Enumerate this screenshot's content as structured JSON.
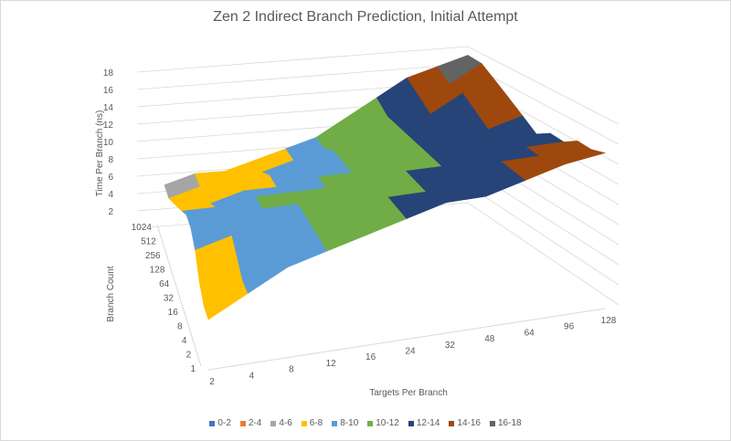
{
  "chart_data": {
    "type": "surface",
    "title": "Zen 2 Indirect Branch Prediction, Initial Attempt",
    "xlabel": "Targets Per Branch",
    "ylabel": "Branch Count",
    "zlabel": "Time Per Branch (ns)",
    "x_ticks": [
      "2",
      "4",
      "8",
      "12",
      "16",
      "24",
      "32",
      "48",
      "64",
      "96",
      "128"
    ],
    "y_ticks": [
      "1",
      "2",
      "4",
      "8",
      "16",
      "32",
      "64",
      "128",
      "256",
      "512",
      "1024"
    ],
    "z_ticks": [
      "2",
      "4",
      "6",
      "8",
      "10",
      "12",
      "14",
      "16",
      "18"
    ],
    "zlim": [
      0,
      18
    ],
    "grid": true,
    "legend_position": "bottom",
    "bands": [
      {
        "label": "0-2",
        "color": "#4472C4"
      },
      {
        "label": "2-4",
        "color": "#ED7D31"
      },
      {
        "label": "4-6",
        "color": "#A5A5A5"
      },
      {
        "label": "6-8",
        "color": "#FFC000"
      },
      {
        "label": "8-10",
        "color": "#5B9BD5"
      },
      {
        "label": "10-12",
        "color": "#70AD47"
      },
      {
        "label": "12-14",
        "color": "#264478"
      },
      {
        "label": "14-16",
        "color": "#9E480E"
      },
      {
        "label": "16-18",
        "color": "#636363"
      }
    ],
    "z_values": [
      [
        5,
        7,
        9,
        10,
        11,
        12,
        13,
        13,
        14,
        15,
        15.5
      ],
      [
        5,
        7,
        9,
        10,
        11,
        12,
        13,
        13,
        14,
        15,
        15
      ],
      [
        6,
        8,
        9,
        10,
        11,
        12,
        12,
        13,
        14,
        14,
        15
      ],
      [
        8,
        9,
        9,
        10,
        11,
        11,
        12,
        13,
        13,
        14,
        14
      ],
      [
        9,
        9,
        10,
        10,
        10,
        11,
        12,
        12,
        13,
        13,
        14
      ],
      [
        9,
        9,
        10,
        10,
        10,
        11,
        11,
        12,
        12,
        13,
        13
      ],
      [
        8,
        8,
        9,
        9,
        10,
        10,
        11,
        12,
        12,
        13,
        14
      ],
      [
        7,
        7,
        8,
        8,
        9,
        10,
        11,
        12,
        13,
        14,
        15
      ],
      [
        6,
        7,
        7,
        8,
        9,
        10,
        11,
        12,
        13,
        15,
        16
      ],
      [
        5,
        6,
        7,
        7,
        8,
        9,
        11,
        12,
        14,
        15,
        17
      ],
      [
        5,
        6,
        6,
        7,
        8,
        9,
        11,
        13,
        15,
        16,
        17
      ]
    ]
  }
}
